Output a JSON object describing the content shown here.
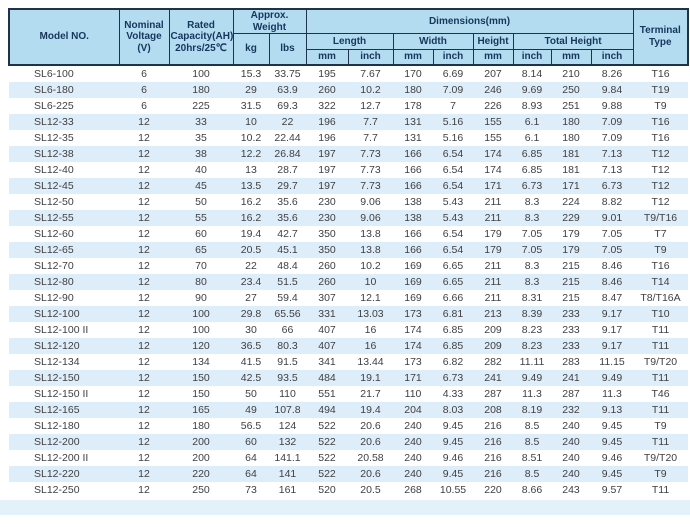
{
  "table": {
    "headers": {
      "model": "Model NO.",
      "nominal_voltage": "Nominal Voltage (V)",
      "rated_capacity": "Rated Capacity(AH) 20hrs/25℃",
      "approx_weight": "Approx. Weight",
      "kg": "kg",
      "lbs": "lbs",
      "dimensions": "Dimensions(mm)",
      "length": "Length",
      "width": "Width",
      "height": "Height",
      "total_height": "Total Height",
      "unit_mm": "mm",
      "unit_inch": "inch",
      "terminal_type": "Terminal Type"
    },
    "rows": [
      [
        "SL6-100",
        "6",
        "100",
        "15.3",
        "33.75",
        "195",
        "7.67",
        "170",
        "6.69",
        "207",
        "8.14",
        "210",
        "8.26",
        "T16"
      ],
      [
        "SL6-180",
        "6",
        "180",
        "29",
        "63.9",
        "260",
        "10.2",
        "180",
        "7.09",
        "246",
        "9.69",
        "250",
        "9.84",
        "T19"
      ],
      [
        "SL6-225",
        "6",
        "225",
        "31.5",
        "69.3",
        "322",
        "12.7",
        "178",
        "7",
        "226",
        "8.93",
        "251",
        "9.88",
        "T9"
      ],
      [
        "SL12-33",
        "12",
        "33",
        "10",
        "22",
        "196",
        "7.7",
        "131",
        "5.16",
        "155",
        "6.1",
        "180",
        "7.09",
        "T16"
      ],
      [
        "SL12-35",
        "12",
        "35",
        "10.2",
        "22.44",
        "196",
        "7.7",
        "131",
        "5.16",
        "155",
        "6.1",
        "180",
        "7.09",
        "T16"
      ],
      [
        "SL12-38",
        "12",
        "38",
        "12.2",
        "26.84",
        "197",
        "7.73",
        "166",
        "6.54",
        "174",
        "6.85",
        "181",
        "7.13",
        "T12"
      ],
      [
        "SL12-40",
        "12",
        "40",
        "13",
        "28.7",
        "197",
        "7.73",
        "166",
        "6.54",
        "174",
        "6.85",
        "181",
        "7.13",
        "T12"
      ],
      [
        "SL12-45",
        "12",
        "45",
        "13.5",
        "29.7",
        "197",
        "7.73",
        "166",
        "6.54",
        "171",
        "6.73",
        "171",
        "6.73",
        "T12"
      ],
      [
        "SL12-50",
        "12",
        "50",
        "16.2",
        "35.6",
        "230",
        "9.06",
        "138",
        "5.43",
        "211",
        "8.3",
        "224",
        "8.82",
        "T12"
      ],
      [
        "SL12-55",
        "12",
        "55",
        "16.2",
        "35.6",
        "230",
        "9.06",
        "138",
        "5.43",
        "211",
        "8.3",
        "229",
        "9.01",
        "T9/T16"
      ],
      [
        "SL12-60",
        "12",
        "60",
        "19.4",
        "42.7",
        "350",
        "13.8",
        "166",
        "6.54",
        "179",
        "7.05",
        "179",
        "7.05",
        "T7"
      ],
      [
        "SL12-65",
        "12",
        "65",
        "20.5",
        "45.1",
        "350",
        "13.8",
        "166",
        "6.54",
        "179",
        "7.05",
        "179",
        "7.05",
        "T9"
      ],
      [
        "SL12-70",
        "12",
        "70",
        "22",
        "48.4",
        "260",
        "10.2",
        "169",
        "6.65",
        "211",
        "8.3",
        "215",
        "8.46",
        "T16"
      ],
      [
        "SL12-80",
        "12",
        "80",
        "23.4",
        "51.5",
        "260",
        "10",
        "169",
        "6.65",
        "211",
        "8.3",
        "215",
        "8.46",
        "T14"
      ],
      [
        "SL12-90",
        "12",
        "90",
        "27",
        "59.4",
        "307",
        "12.1",
        "169",
        "6.66",
        "211",
        "8.31",
        "215",
        "8.47",
        "T8/T16A"
      ],
      [
        "SL12-100",
        "12",
        "100",
        "29.8",
        "65.56",
        "331",
        "13.03",
        "173",
        "6.81",
        "213",
        "8.39",
        "233",
        "9.17",
        "T10"
      ],
      [
        "SL12-100 II",
        "12",
        "100",
        "30",
        "66",
        "407",
        "16",
        "174",
        "6.85",
        "209",
        "8.23",
        "233",
        "9.17",
        "T11"
      ],
      [
        "SL12-120",
        "12",
        "120",
        "36.5",
        "80.3",
        "407",
        "16",
        "174",
        "6.85",
        "209",
        "8.23",
        "233",
        "9.17",
        "T11"
      ],
      [
        "SL12-134",
        "12",
        "134",
        "41.5",
        "91.5",
        "341",
        "13.44",
        "173",
        "6.82",
        "282",
        "11.11",
        "283",
        "11.15",
        "T9/T20"
      ],
      [
        "SL12-150",
        "12",
        "150",
        "42.5",
        "93.5",
        "484",
        "19.1",
        "171",
        "6.73",
        "241",
        "9.49",
        "241",
        "9.49",
        "T11"
      ],
      [
        "SL12-150 II",
        "12",
        "150",
        "50",
        "110",
        "551",
        "21.7",
        "110",
        "4.33",
        "287",
        "11.3",
        "287",
        "11.3",
        "T46"
      ],
      [
        "SL12-165",
        "12",
        "165",
        "49",
        "107.8",
        "494",
        "19.4",
        "204",
        "8.03",
        "208",
        "8.19",
        "232",
        "9.13",
        "T11"
      ],
      [
        "SL12-180",
        "12",
        "180",
        "56.5",
        "124",
        "522",
        "20.6",
        "240",
        "9.45",
        "216",
        "8.5",
        "240",
        "9.45",
        "T9"
      ],
      [
        "SL12-200",
        "12",
        "200",
        "60",
        "132",
        "522",
        "20.6",
        "240",
        "9.45",
        "216",
        "8.5",
        "240",
        "9.45",
        "T11"
      ],
      [
        "SL12-200 II",
        "12",
        "200",
        "64",
        "141.1",
        "522",
        "20.58",
        "240",
        "9.46",
        "216",
        "8.51",
        "240",
        "9.46",
        "T9/T20"
      ],
      [
        "SL12-220",
        "12",
        "220",
        "64",
        "141",
        "522",
        "20.6",
        "240",
        "9.45",
        "216",
        "8.5",
        "240",
        "9.45",
        "T9"
      ],
      [
        "SL12-250",
        "12",
        "250",
        "73",
        "161",
        "520",
        "20.5",
        "268",
        "10.55",
        "220",
        "8.66",
        "243",
        "9.57",
        "T11"
      ]
    ]
  },
  "colors": {
    "header_bg": "#b3dcf0",
    "stripe_bg": "#ddeefa",
    "band_bg": "#e3f1fb",
    "border": "#1e3349",
    "header_text": "#16365c",
    "data_text": "#3f3f3f"
  }
}
